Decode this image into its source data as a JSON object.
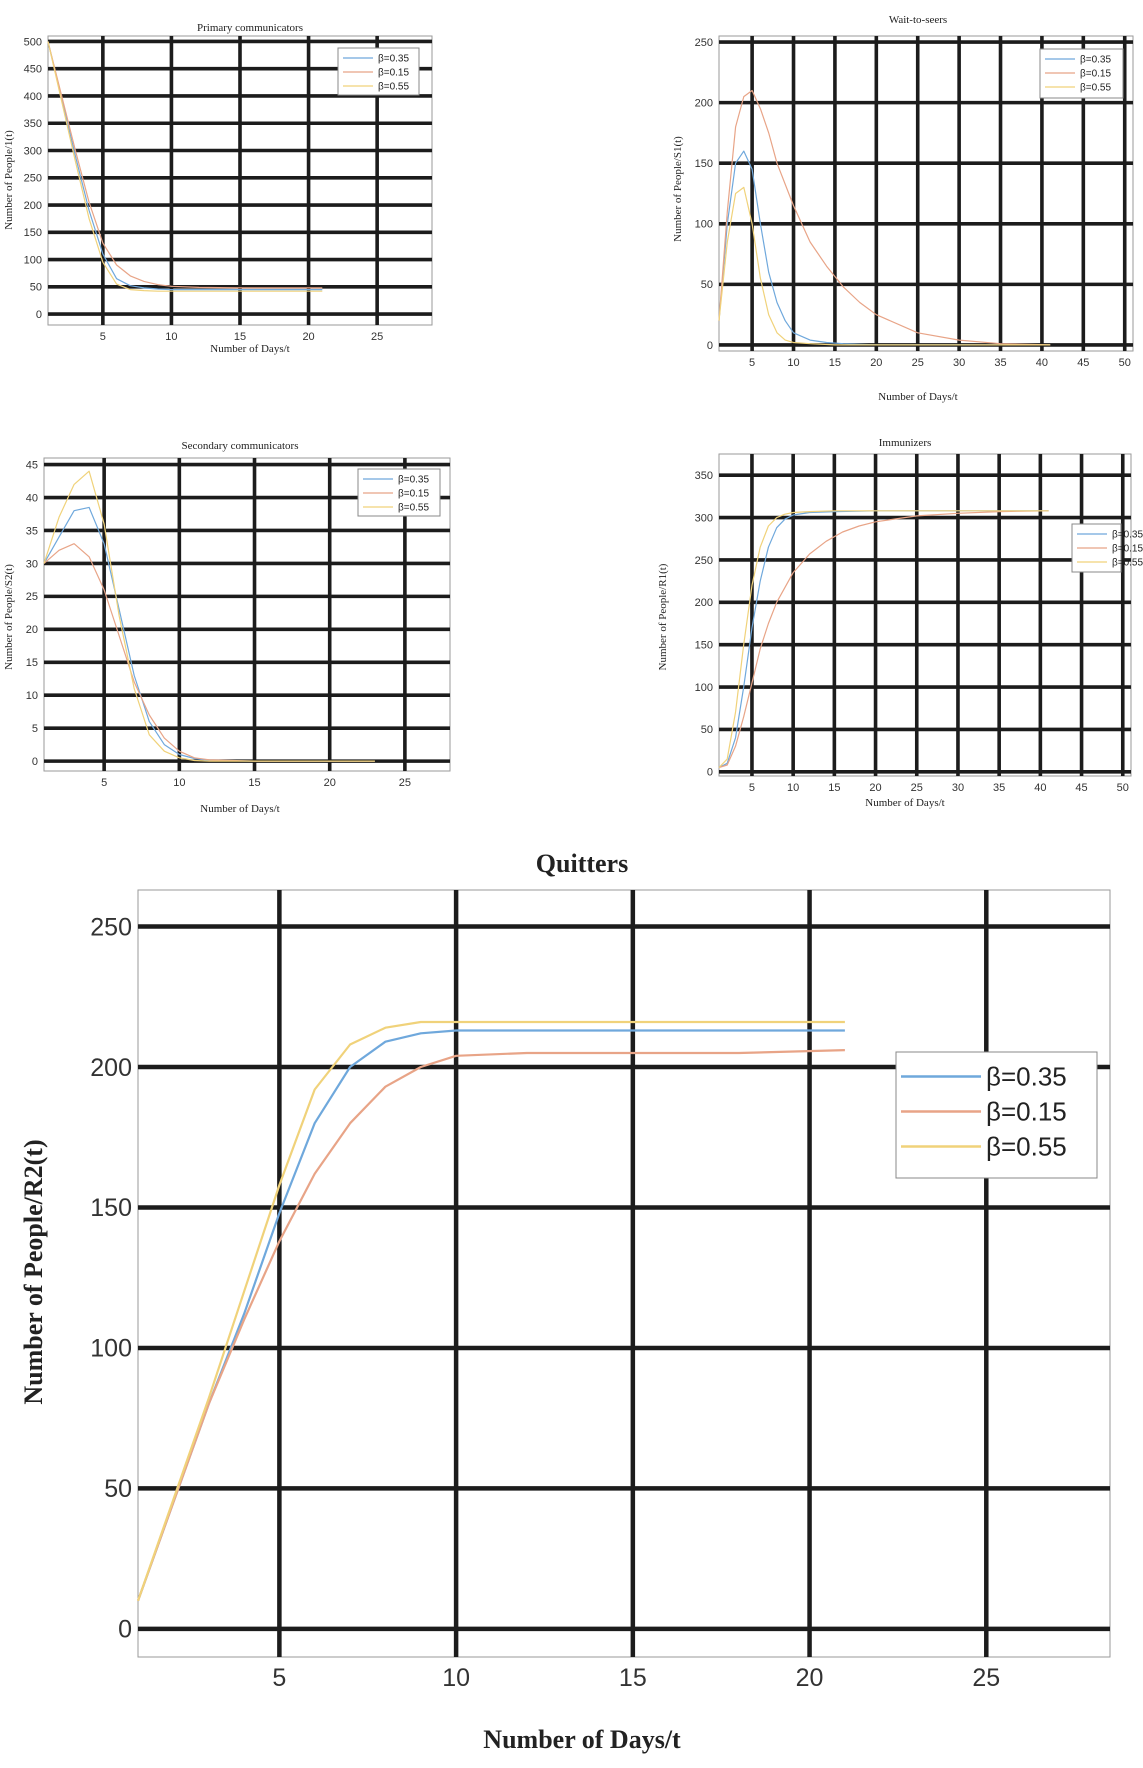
{
  "chart_data": [
    {
      "type": "line",
      "title": "Primary communicators",
      "xlabel": "Number of Days/t",
      "ylabel": "Number of People/1(t)",
      "xlim": [
        1,
        29
      ],
      "ylim": [
        -20,
        510
      ],
      "xticks": [
        5,
        10,
        15,
        20,
        25
      ],
      "yticks": [
        0,
        50,
        100,
        150,
        200,
        250,
        300,
        350,
        400,
        450,
        500
      ],
      "grid": true,
      "legend": "top-right",
      "series": [
        {
          "name": "β=0.35",
          "color": "#6fa8dc",
          "x": [
            1,
            2,
            3,
            4,
            5,
            6,
            7,
            8,
            9,
            10,
            12,
            15,
            18,
            21
          ],
          "y": [
            500,
            395,
            290,
            190,
            110,
            65,
            52,
            48,
            46,
            45,
            45,
            45,
            45,
            45
          ]
        },
        {
          "name": "β=0.15",
          "color": "#e8a487",
          "x": [
            1,
            2,
            3,
            4,
            5,
            6,
            7,
            8,
            9,
            10,
            12,
            15,
            18,
            21
          ],
          "y": [
            500,
            400,
            300,
            205,
            130,
            90,
            70,
            60,
            54,
            51,
            49,
            48,
            48,
            48
          ]
        },
        {
          "name": "β=0.55",
          "color": "#f0d27a",
          "x": [
            1,
            2,
            3,
            4,
            5,
            6,
            7,
            8,
            9,
            10,
            12,
            15,
            18,
            21
          ],
          "y": [
            500,
            390,
            280,
            175,
            95,
            55,
            45,
            43,
            42,
            42,
            42,
            42,
            42,
            42
          ]
        }
      ]
    },
    {
      "type": "line",
      "title": "Wait-to-seers",
      "xlabel": "Number of Days/t",
      "ylabel": "Number of People/S1(t)",
      "xlim": [
        1,
        51
      ],
      "ylim": [
        -5,
        255
      ],
      "xticks": [
        5,
        10,
        15,
        20,
        25,
        30,
        35,
        40,
        45,
        50
      ],
      "yticks": [
        0,
        50,
        100,
        150,
        200,
        250
      ],
      "grid": true,
      "legend": "top-right",
      "series": [
        {
          "name": "β=0.35",
          "color": "#6fa8dc",
          "x": [
            1,
            2,
            3,
            4,
            5,
            6,
            7,
            8,
            9,
            10,
            12,
            14,
            16,
            20,
            30,
            41
          ],
          "y": [
            20,
            100,
            150,
            160,
            145,
            100,
            60,
            35,
            20,
            10,
            4,
            2,
            1,
            0,
            0,
            0
          ]
        },
        {
          "name": "β=0.15",
          "color": "#e8a487",
          "x": [
            1,
            2,
            3,
            4,
            5,
            6,
            7,
            8,
            10,
            12,
            14,
            16,
            18,
            20,
            25,
            30,
            35,
            41
          ],
          "y": [
            20,
            110,
            180,
            205,
            210,
            195,
            175,
            150,
            115,
            85,
            65,
            48,
            35,
            25,
            10,
            4,
            1,
            0
          ]
        },
        {
          "name": "β=0.55",
          "color": "#f0d27a",
          "x": [
            1,
            2,
            3,
            4,
            5,
            6,
            7,
            8,
            9,
            10,
            12,
            15,
            20,
            30,
            41
          ],
          "y": [
            20,
            85,
            125,
            130,
            100,
            55,
            25,
            10,
            4,
            2,
            1,
            0,
            0,
            0,
            0
          ]
        }
      ]
    },
    {
      "type": "line",
      "title": "Secondary communicators",
      "xlabel": "Number of Days/t",
      "ylabel": "Number of People/S2(t)",
      "xlim": [
        1,
        28
      ],
      "ylim": [
        -1.5,
        46
      ],
      "xticks": [
        5,
        10,
        15,
        20,
        25
      ],
      "yticks": [
        0,
        5,
        10,
        15,
        20,
        25,
        30,
        35,
        40,
        45
      ],
      "grid": true,
      "legend": "top-right",
      "series": [
        {
          "name": "β=0.35",
          "color": "#6fa8dc",
          "x": [
            1,
            2,
            3,
            4,
            5,
            6,
            7,
            8,
            9,
            10,
            11,
            12,
            15,
            20,
            23
          ],
          "y": [
            30,
            34,
            38,
            38.5,
            33,
            23,
            13,
            6,
            2.5,
            1,
            0.4,
            0.1,
            0,
            0,
            0
          ]
        },
        {
          "name": "β=0.15",
          "color": "#e8a487",
          "x": [
            1,
            2,
            3,
            4,
            5,
            6,
            7,
            8,
            9,
            10,
            11,
            12,
            15,
            20,
            23
          ],
          "y": [
            30,
            32,
            33,
            31,
            26,
            19,
            12,
            7,
            3.5,
            1.5,
            0.5,
            0.2,
            0,
            0,
            0
          ]
        },
        {
          "name": "β=0.55",
          "color": "#f0d27a",
          "x": [
            1,
            2,
            3,
            4,
            5,
            6,
            7,
            8,
            9,
            10,
            11,
            12,
            15,
            20,
            23
          ],
          "y": [
            30,
            37,
            42,
            44,
            36,
            22,
            11,
            4,
            1.5,
            0.5,
            0.1,
            0,
            0,
            0,
            0
          ]
        }
      ]
    },
    {
      "type": "line",
      "title": "Immunizers",
      "xlabel": "Number of Days/t",
      "ylabel": "Number of People/R1(t)",
      "xlim": [
        1,
        51
      ],
      "ylim": [
        -5,
        375
      ],
      "xticks": [
        5,
        10,
        15,
        20,
        25,
        30,
        35,
        40,
        45,
        50
      ],
      "yticks": [
        0,
        50,
        100,
        150,
        200,
        250,
        300,
        350
      ],
      "grid": true,
      "legend": "top-right",
      "series": [
        {
          "name": "β=0.35",
          "color": "#6fa8dc",
          "x": [
            1,
            2,
            3,
            4,
            5,
            6,
            7,
            8,
            9,
            10,
            12,
            15,
            20,
            30,
            41
          ],
          "y": [
            5,
            10,
            40,
            100,
            170,
            225,
            265,
            288,
            298,
            303,
            306,
            307,
            308,
            308,
            308
          ]
        },
        {
          "name": "β=0.15",
          "color": "#e8a487",
          "x": [
            1,
            2,
            3,
            4,
            5,
            6,
            7,
            8,
            10,
            12,
            14,
            16,
            18,
            20,
            25,
            30,
            35,
            41
          ],
          "y": [
            5,
            8,
            30,
            65,
            105,
            145,
            175,
            200,
            235,
            257,
            272,
            283,
            290,
            295,
            302,
            305,
            307,
            308
          ]
        },
        {
          "name": "β=0.55",
          "color": "#f0d27a",
          "x": [
            1,
            2,
            3,
            4,
            5,
            6,
            7,
            8,
            9,
            10,
            12,
            15,
            20,
            30,
            41
          ],
          "y": [
            5,
            15,
            70,
            150,
            220,
            265,
            290,
            300,
            304,
            306,
            307,
            308,
            308,
            308,
            308
          ]
        }
      ]
    },
    {
      "type": "line",
      "title": "Quitters",
      "xlabel": "Number of Days/t",
      "ylabel": "Number of People/R2(t)",
      "xlim": [
        1,
        28.5
      ],
      "ylim": [
        -10,
        263
      ],
      "xticks": [
        5,
        10,
        15,
        20,
        25
      ],
      "yticks": [
        0,
        50,
        100,
        150,
        200,
        250
      ],
      "grid": true,
      "legend": "right",
      "series": [
        {
          "name": "β=0.35",
          "color": "#6fa8dc",
          "x": [
            1,
            2,
            3,
            4,
            5,
            6,
            7,
            8,
            9,
            10,
            12,
            15,
            18,
            21
          ],
          "y": [
            10,
            45,
            80,
            112,
            148,
            180,
            200,
            209,
            212,
            213,
            213,
            213,
            213,
            213
          ]
        },
        {
          "name": "β=0.15",
          "color": "#e8a487",
          "x": [
            1,
            2,
            3,
            4,
            5,
            6,
            7,
            8,
            9,
            10,
            12,
            15,
            18,
            21
          ],
          "y": [
            10,
            45,
            80,
            110,
            138,
            162,
            180,
            193,
            200,
            204,
            205,
            205,
            205,
            206
          ]
        },
        {
          "name": "β=0.55",
          "color": "#f0d27a",
          "x": [
            1,
            2,
            3,
            4,
            5,
            6,
            7,
            8,
            9,
            10,
            12,
            15,
            18,
            21
          ],
          "y": [
            10,
            46,
            82,
            120,
            158,
            192,
            208,
            214,
            216,
            216,
            216,
            216,
            216,
            216
          ]
        }
      ]
    }
  ]
}
